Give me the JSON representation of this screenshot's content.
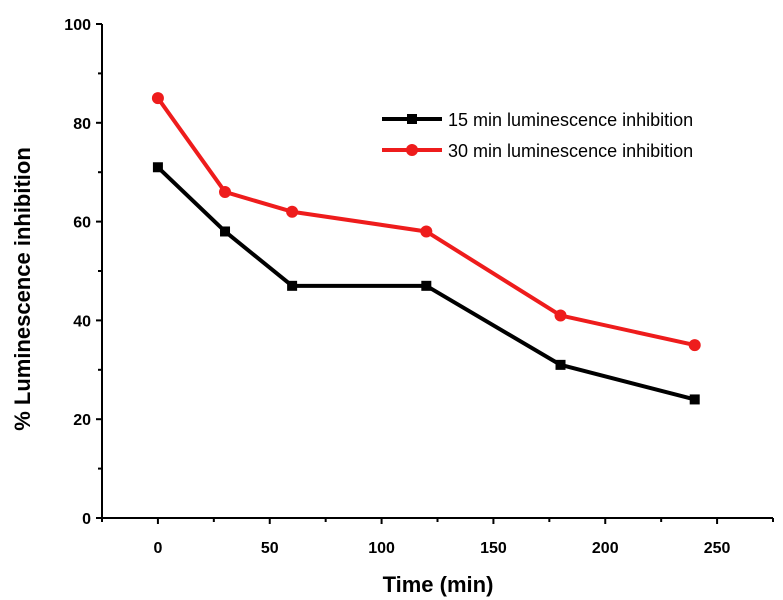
{
  "chart_data": {
    "type": "line",
    "title": "",
    "xlabel": "Time (min)",
    "ylabel": "% Luminescence inhibition",
    "x": [
      0,
      30,
      60,
      120,
      180,
      240
    ],
    "xlim": [
      -25,
      275
    ],
    "ylim": [
      0,
      100
    ],
    "xticks": [
      0,
      50,
      100,
      150,
      200,
      250
    ],
    "yticks": [
      0,
      20,
      40,
      60,
      80,
      100
    ],
    "grid": false,
    "legend_position": "top-right",
    "series": [
      {
        "name": "15 min luminescence inhibition",
        "color": "#000000",
        "marker": "square",
        "values": [
          71,
          58,
          47,
          47,
          31,
          24
        ]
      },
      {
        "name": "30 min luminescence inhibition",
        "color": "#ee1c1c",
        "marker": "circle",
        "values": [
          85,
          66,
          62,
          58,
          41,
          35
        ]
      }
    ]
  }
}
